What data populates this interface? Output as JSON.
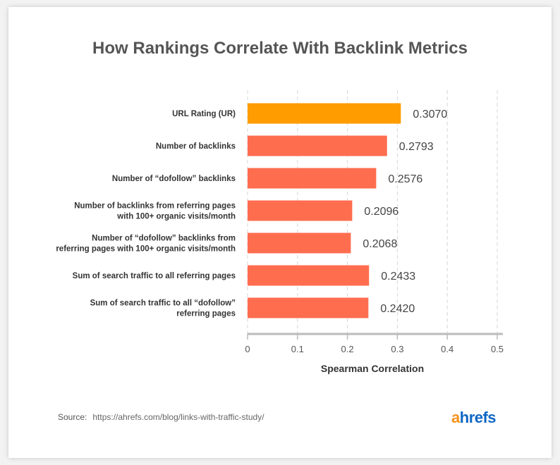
{
  "chart_data": {
    "type": "bar",
    "orientation": "horizontal",
    "title": "How Rankings Correlate With Backlink Metrics",
    "xlabel": "Spearman Correlation",
    "ylabel": "",
    "xlim": [
      0,
      0.5
    ],
    "ticks": [
      "0",
      "0.1",
      "0.2",
      "0.3",
      "0.4",
      "0.5"
    ],
    "grid": "vertical dashed",
    "categories": [
      [
        "URL Rating (UR)"
      ],
      [
        "Number of backlinks"
      ],
      [
        "Number of “dofollow” backlinks"
      ],
      [
        "Number of backlinks from referring pages",
        "with 100+ organic visits/month"
      ],
      [
        "Number of “dofollow” backlinks from",
        "referring pages with 100+ organic visits/month"
      ],
      [
        "Sum of search traffic to all referring pages"
      ],
      [
        "Sum of search traffic to all “dofollow”",
        "referring pages"
      ]
    ],
    "values": [
      0.307,
      0.2793,
      0.2576,
      0.2096,
      0.2068,
      0.2433,
      0.242
    ],
    "value_labels": [
      "0.3070",
      "0.2793",
      "0.2576",
      "0.2096",
      "0.2068",
      "0.2433",
      "0.2420"
    ],
    "colors": [
      "#ff9c00",
      "#ff6d4f",
      "#ff6d4f",
      "#ff6d4f",
      "#ff6d4f",
      "#ff6d4f",
      "#ff6d4f"
    ]
  },
  "source": {
    "label": "Source:",
    "url": "https://ahrefs.com/blog/links-with-traffic-study/"
  },
  "logo": {
    "a": "a",
    "rest": "hrefs"
  }
}
